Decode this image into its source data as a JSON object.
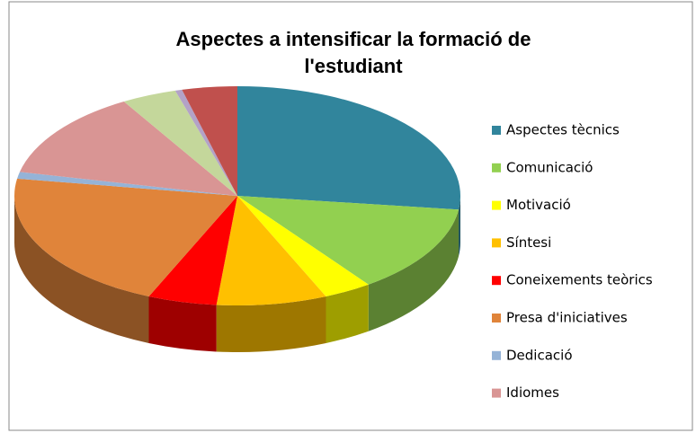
{
  "chart_data": {
    "type": "pie",
    "title": "Aspectes a intensificar la formació de l'estudiant",
    "categories": [
      "Aspectes tècnics",
      "Comunicació",
      "Motivació",
      "Síntesi",
      "Coneixements teòrics",
      "Presa d'iniciatives",
      "Dedicació",
      "Idiomes",
      null,
      null,
      null
    ],
    "values": [
      27,
      13,
      3.5,
      8,
      5,
      21,
      1,
      13,
      4,
      0.5,
      4
    ],
    "colors": [
      "#31859c",
      "#92d050",
      "#ffff00",
      "#ffc000",
      "#ff0000",
      "#e0843a",
      "#95b3d7",
      "#d99594",
      "#c4d79b",
      "#b3a2c7",
      "#c0504d"
    ],
    "legend": "right"
  }
}
